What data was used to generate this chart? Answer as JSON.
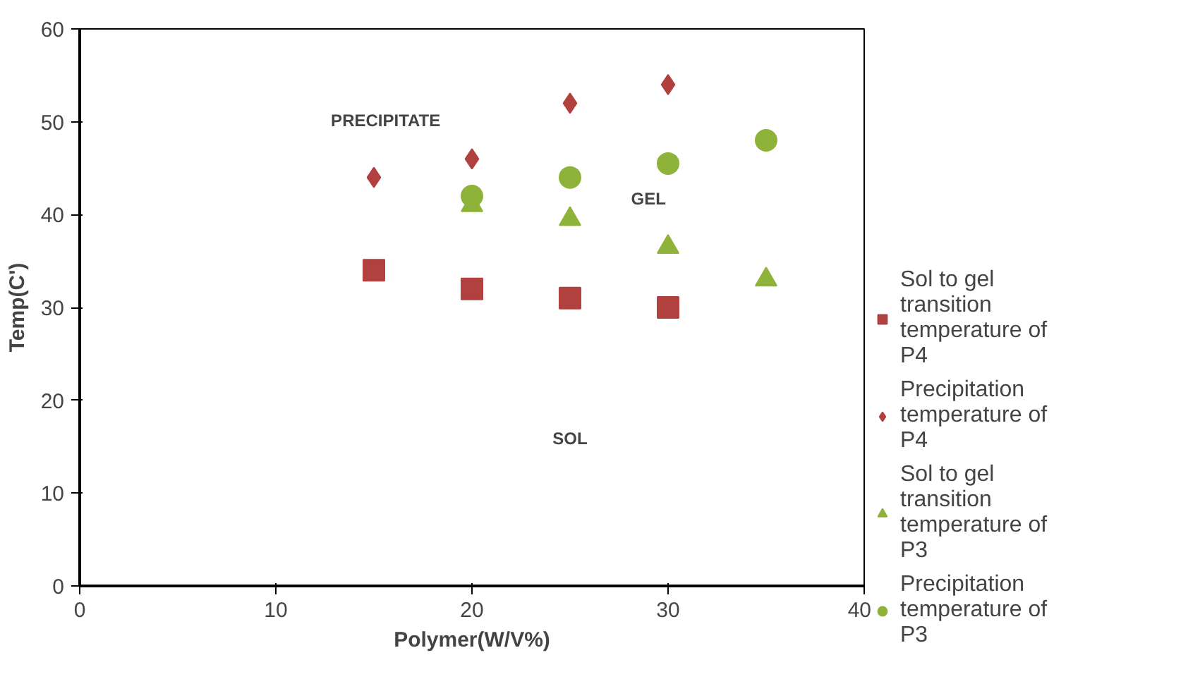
{
  "chart_data": {
    "type": "scatter",
    "xlabel": "Polymer(W/V%)",
    "ylabel": "Temp(C')",
    "xlim": [
      0,
      40
    ],
    "xticks": [
      0,
      10,
      20,
      30,
      40
    ],
    "ylim": [
      0,
      60
    ],
    "yticks": [
      0,
      10,
      20,
      30,
      40,
      50,
      60
    ],
    "grid": false,
    "legend": "right",
    "series": [
      {
        "name": "Sol to gel transition temperature of P4",
        "color": "#b0413e",
        "marker": "square",
        "x": [
          15,
          20,
          25,
          30
        ],
        "values": [
          34,
          32,
          31,
          30
        ]
      },
      {
        "name": "Precipitation temperature of P4",
        "color": "#b0413e",
        "marker": "diamond",
        "x": [
          15,
          20,
          25,
          30
        ],
        "values": [
          44,
          46,
          52,
          54
        ]
      },
      {
        "name": "Sol to gel transition temperature of P3",
        "color": "#8fb23a",
        "marker": "triangle",
        "x": [
          20,
          25,
          30,
          35
        ],
        "values": [
          41,
          39.5,
          36.5,
          33
        ]
      },
      {
        "name": "Precipitation temperature of P3",
        "color": "#8fb23a",
        "marker": "circle",
        "x": [
          20,
          25,
          30,
          35
        ],
        "values": [
          42,
          44,
          45.5,
          48
        ]
      }
    ],
    "annotations": [
      "PRECIPITATE",
      "GEL",
      "SOL"
    ]
  }
}
